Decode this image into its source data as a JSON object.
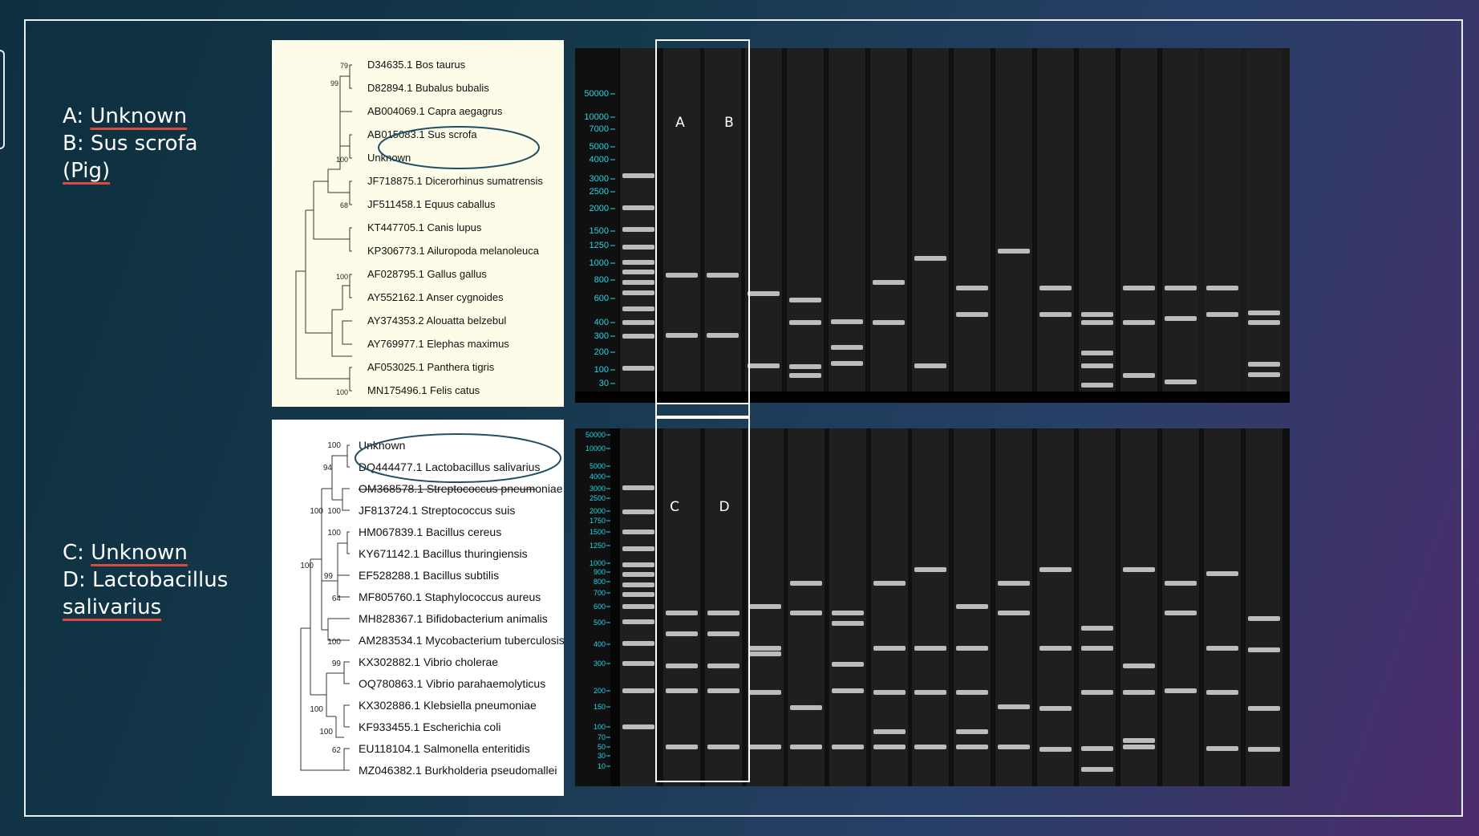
{
  "captions": {
    "top": {
      "line1_prefix": "A: ",
      "line1_word": "Unknown",
      "line2": "B: Sus scrofa",
      "line3": "(Pig)"
    },
    "bottom": {
      "line1_prefix": "C: ",
      "line1_word": "Unknown",
      "line2_a": "D: Lactobacillus",
      "line2_b": "salivarius"
    }
  },
  "tree_top": {
    "leaves": [
      "D34635.1 Bos taurus",
      "D82894.1 Bubalus bubalis",
      "AB004069.1 Capra aegagrus",
      "AB015083.1 Sus scrofa",
      "Unknown",
      "JF718875.1 Dicerorhinus sumatrensis",
      "JF511458.1 Equus caballus",
      "KT447705.1 Canis lupus",
      "KP306773.1 Ailuropoda melanoleuca",
      "AF028795.1 Gallus gallus",
      "AY552162.1 Anser cygnoides",
      "AY374353.2 Alouatta belzebul",
      "AY769977.1 Elephas maximus",
      "AF053025.1 Panthera tigris",
      "MN175496.1 Felis catus"
    ],
    "bootstraps": [
      "79",
      "99",
      "100",
      "68",
      "100",
      "100"
    ]
  },
  "tree_bottom": {
    "leaves": [
      "Unknown",
      "DQ444477.1 Lactobacillus salivarius",
      "OM368578.1 Streptococcus pneumoniae",
      "JF813724.1 Streptococcus suis",
      "HM067839.1 Bacillus cereus",
      "KY671142.1 Bacillus thuringiensis",
      "EF528288.1 Bacillus subtilis",
      "MF805760.1 Staphylococcus aureus",
      "MH828367.1 Bifidobacterium animalis",
      "AM283534.1 Mycobacterium tuberculosis",
      "KX302882.1 Vibrio cholerae",
      "OQ780863.1 Vibrio parahaemolyticus",
      "KX302886.1 Klebsiella pneumoniae",
      "KF933455.1 Escherichia coli",
      "EU118104.1 Salmonella enteritidis",
      "MZ046382.1 Burkholderia pseudomallei"
    ],
    "bootstraps": [
      "100",
      "94",
      "100",
      "100",
      "100",
      "100",
      "99",
      "64",
      "100",
      "99",
      "100",
      "100",
      "62"
    ]
  },
  "gel_top": {
    "ladder_labels": [
      "50000",
      "10000",
      "7000",
      "5000",
      "4000",
      "3000",
      "2500",
      "2000",
      "1500",
      "1250",
      "1000",
      "800",
      "600",
      "400",
      "300",
      "200",
      "100",
      "30"
    ],
    "lane_letters": [
      "A",
      "B"
    ]
  },
  "gel_bottom": {
    "ladder_labels": [
      "50000",
      "10000",
      "5000",
      "4000",
      "3000",
      "2500",
      "2000",
      "1750",
      "1500",
      "1250",
      "1000",
      "900",
      "800",
      "700",
      "600",
      "500",
      "400",
      "300",
      "200",
      "150",
      "100",
      "70",
      "50",
      "30",
      "10"
    ],
    "lane_letters": [
      "C",
      "D"
    ]
  },
  "colors": {
    "accent_underline": "#d94b3e",
    "ladder_text": "#22d6e6",
    "top_tree_bg": "#fdfce8",
    "bottom_tree_bg": "#ffffff",
    "gel_bg": "#101010"
  }
}
